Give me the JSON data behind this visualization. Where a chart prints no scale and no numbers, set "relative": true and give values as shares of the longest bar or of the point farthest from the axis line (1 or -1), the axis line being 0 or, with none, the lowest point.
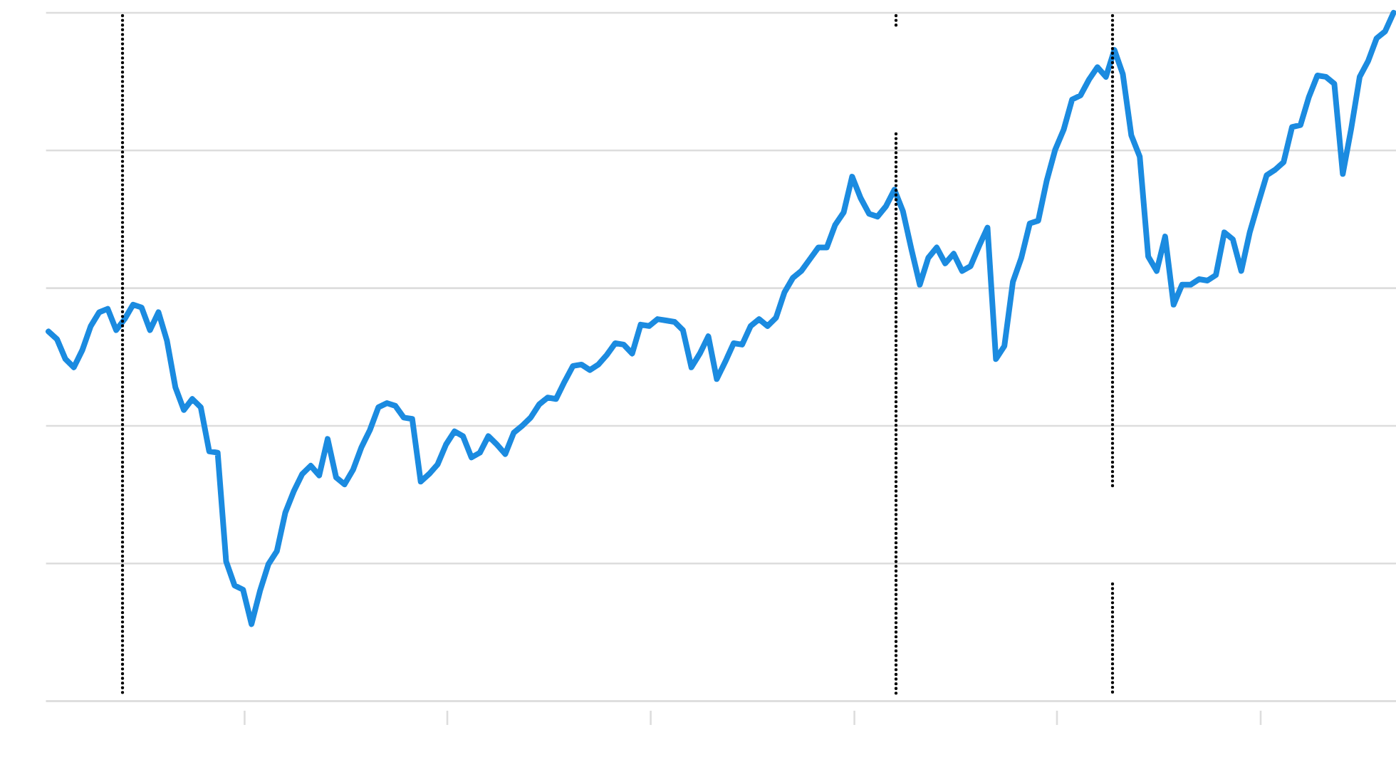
{
  "chart_data": {
    "type": "line",
    "relative": true,
    "grid": "y",
    "color": "#1b8be0",
    "categories": [
      null,
      null,
      null,
      null,
      null,
      null,
      null,
      null,
      null,
      null,
      null,
      null,
      null,
      null,
      null,
      null,
      null,
      null,
      null,
      null,
      null,
      null,
      null,
      null,
      null,
      null,
      null,
      null,
      null,
      null,
      null,
      null,
      null,
      null,
      null,
      null,
      null,
      null,
      null,
      null,
      null,
      null,
      null,
      null,
      null,
      null,
      null,
      null,
      null,
      null,
      null,
      null,
      null,
      null,
      null,
      null,
      null,
      null,
      null,
      null,
      null,
      null,
      null,
      null,
      null,
      null,
      null,
      null,
      null,
      null,
      null,
      null,
      null,
      null,
      null,
      null,
      null,
      null,
      null,
      null,
      null,
      null,
      null,
      null,
      null,
      null,
      null,
      null,
      null,
      null,
      null,
      null,
      null,
      null,
      null,
      null,
      null,
      null,
      null,
      null,
      null,
      null,
      null,
      null,
      null,
      null,
      null,
      null,
      null,
      null,
      null,
      null,
      null,
      null,
      null,
      null,
      null,
      null,
      null,
      null,
      null,
      null,
      null,
      null,
      null,
      null,
      null,
      null,
      null,
      null,
      null,
      null,
      null,
      null,
      null,
      null,
      null,
      null,
      null,
      null,
      null,
      null,
      null,
      null,
      null,
      null,
      null,
      null,
      null,
      null,
      null,
      null,
      null,
      null,
      null,
      null,
      null,
      null,
      null,
      null
    ],
    "values": [
      0.537,
      0.526,
      0.497,
      0.485,
      0.51,
      0.545,
      0.565,
      0.57,
      0.539,
      0.555,
      0.576,
      0.572,
      0.539,
      0.565,
      0.524,
      0.456,
      0.423,
      0.439,
      0.427,
      0.363,
      0.361,
      0.203,
      0.168,
      0.162,
      0.112,
      0.16,
      0.199,
      0.218,
      0.274,
      0.305,
      0.33,
      0.342,
      0.328,
      0.381,
      0.325,
      0.315,
      0.336,
      0.369,
      0.394,
      0.427,
      0.433,
      0.429,
      0.412,
      0.41,
      0.319,
      0.33,
      0.344,
      0.373,
      0.392,
      0.385,
      0.354,
      0.361,
      0.385,
      0.373,
      0.359,
      0.39,
      0.4,
      0.412,
      0.431,
      0.441,
      0.439,
      0.464,
      0.487,
      0.489,
      0.481,
      0.489,
      0.503,
      0.52,
      0.518,
      0.505,
      0.547,
      0.545,
      0.555,
      0.553,
      0.551,
      0.539,
      0.485,
      0.505,
      0.53,
      0.468,
      0.493,
      0.52,
      0.518,
      0.545,
      0.555,
      0.545,
      0.557,
      0.594,
      0.615,
      0.625,
      0.642,
      0.659,
      0.659,
      0.692,
      0.71,
      0.762,
      0.731,
      0.708,
      0.704,
      0.719,
      0.743,
      0.712,
      0.657,
      0.605,
      0.644,
      0.659,
      0.636,
      0.65,
      0.625,
      0.632,
      0.661,
      0.688,
      0.497,
      0.516,
      0.609,
      0.644,
      0.694,
      0.698,
      0.756,
      0.801,
      0.83,
      0.874,
      0.88,
      0.903,
      0.921,
      0.907,
      0.946,
      0.911,
      0.822,
      0.791,
      0.646,
      0.625,
      0.675,
      0.576,
      0.605,
      0.605,
      0.613,
      0.611,
      0.619,
      0.681,
      0.671,
      0.625,
      0.681,
      0.723,
      0.764,
      0.772,
      0.783,
      0.834,
      0.837,
      0.878,
      0.909,
      0.907,
      0.897,
      0.766,
      0.832,
      0.907,
      0.93,
      0.963,
      0.973,
      1.0
    ]
  }
}
